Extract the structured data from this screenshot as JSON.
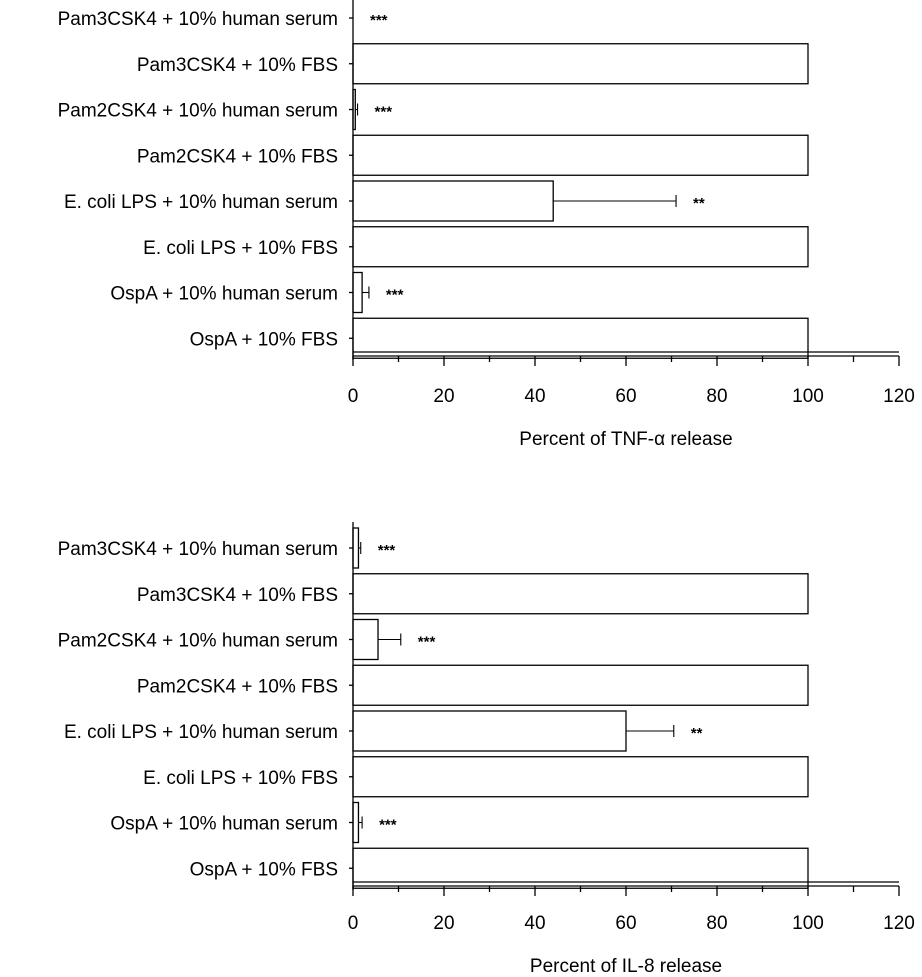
{
  "chart_data": [
    {
      "type": "bar",
      "orientation": "horizontal",
      "categories": [
        "Pam3CSK4 + 10% human serum",
        "Pam3CSK4 + 10% FBS",
        "Pam2CSK4 + 10% human serum",
        "Pam2CSK4 + 10% FBS",
        "E. coli LPS + 10% human serum",
        "E. coli LPS + 10% FBS",
        "OspA + 10% human serum",
        "OspA + 10% FBS"
      ],
      "values": [
        0,
        100,
        0.5,
        100,
        44,
        100,
        2,
        100
      ],
      "errors": [
        0,
        0,
        0.5,
        0,
        27,
        0,
        1.5,
        0
      ],
      "significance": [
        "***",
        "",
        "***",
        "",
        "**",
        "",
        "***",
        ""
      ],
      "xlabel": "Percent of TNF-α release",
      "xlim": [
        0,
        120
      ],
      "xticks": [
        "0",
        "20",
        "40",
        "60",
        "80",
        "100",
        "120"
      ],
      "grid": false
    },
    {
      "type": "bar",
      "orientation": "horizontal",
      "categories": [
        "Pam3CSK4 + 10% human serum",
        "Pam3CSK4 + 10% FBS",
        "Pam2CSK4 + 10% human serum",
        "Pam2CSK4 + 10% FBS",
        "E. coli LPS + 10% human serum",
        "E. coli LPS + 10% FBS",
        "OspA + 10% human serum",
        "OspA + 10% FBS"
      ],
      "values": [
        1.2,
        100,
        5.5,
        100,
        60,
        100,
        1.2,
        100
      ],
      "errors": [
        0.5,
        0,
        5,
        0,
        10.5,
        0,
        0.8,
        0
      ],
      "significance": [
        "***",
        "",
        "***",
        "",
        "**",
        "",
        "***",
        ""
      ],
      "xlabel": "Percent of IL-8 release",
      "xlim": [
        0,
        120
      ],
      "xticks": [
        "0",
        "20",
        "40",
        "60",
        "80",
        "100",
        "120"
      ],
      "grid": false
    }
  ]
}
